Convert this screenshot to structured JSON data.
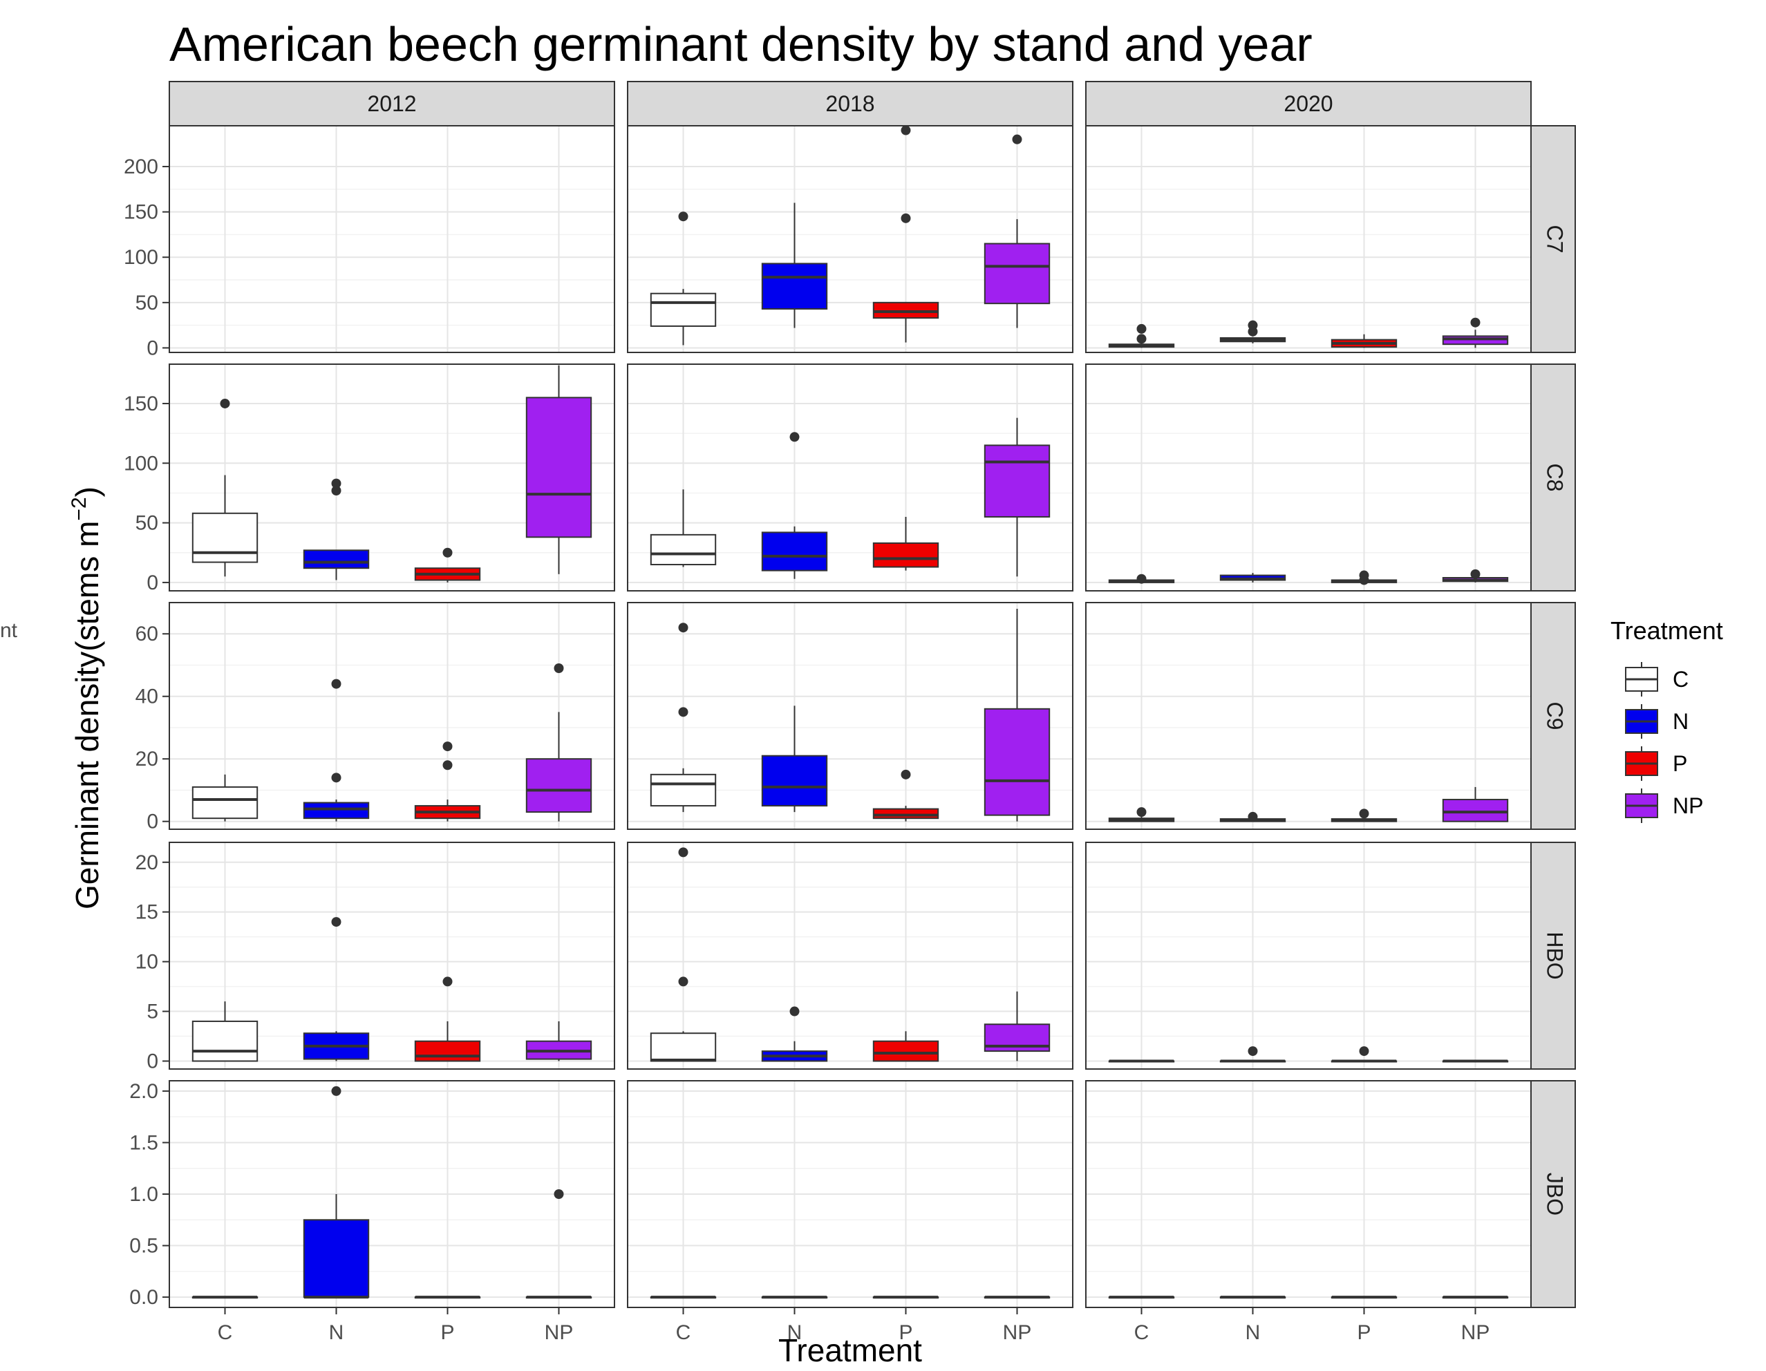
{
  "chart_data": {
    "type": "boxplot",
    "title": "American beech germinant density by stand and year",
    "xlabel": "Treatment",
    "ylabel": "Germinant density(stems m",
    "ylabel_superscript": "−2",
    "ylabel_close": ")",
    "stray_label": "nt",
    "categories": [
      "C",
      "N",
      "P",
      "NP"
    ],
    "columns": [
      "2012",
      "2018",
      "2020"
    ],
    "rows": [
      "C7",
      "C8",
      "C9",
      "HBO",
      "JBO"
    ],
    "legend": {
      "title": "Treatment",
      "placement": "right",
      "entries": [
        "C",
        "N",
        "P",
        "NP"
      ]
    },
    "colors": {
      "C": "#FFFFFF",
      "N": "#0000EE",
      "P": "#EE0000",
      "NP": "#A020F0"
    },
    "scales": {
      "C7": {
        "ylim": [
          -5,
          245
        ],
        "ticks": [
          0,
          50,
          100,
          150,
          200
        ],
        "tick_labels": [
          "0",
          "50",
          "100",
          "150",
          "200"
        ]
      },
      "C8": {
        "ylim": [
          -7,
          183
        ],
        "ticks": [
          0,
          50,
          100,
          150
        ],
        "tick_labels": [
          "0",
          "50",
          "100",
          "150"
        ]
      },
      "C9": {
        "ylim": [
          -2.5,
          70
        ],
        "ticks": [
          0,
          20,
          40,
          60
        ],
        "tick_labels": [
          "0",
          "20",
          "40",
          "60"
        ]
      },
      "HBO": {
        "ylim": [
          -0.8,
          22
        ],
        "ticks": [
          0,
          5,
          10,
          15,
          20
        ],
        "tick_labels": [
          "0",
          "5",
          "10",
          "15",
          "20"
        ]
      },
      "JBO": {
        "ylim": [
          -0.1,
          2.1
        ],
        "ticks": [
          0,
          0.5,
          1,
          1.5,
          2
        ],
        "tick_labels": [
          "0.0",
          "0.5",
          "1.0",
          "1.5",
          "2.0"
        ]
      }
    },
    "panels": [
      {
        "row": "C7",
        "col": "2012",
        "boxes": []
      },
      {
        "row": "C7",
        "col": "2018",
        "boxes": [
          {
            "group": "C",
            "q1": 24,
            "median": 50,
            "q3": 60,
            "low": 3,
            "high": 65,
            "outliers": [
              145
            ]
          },
          {
            "group": "N",
            "q1": 43,
            "median": 78,
            "q3": 93,
            "low": 22,
            "high": 160,
            "outliers": []
          },
          {
            "group": "P",
            "q1": 33,
            "median": 40,
            "q3": 50,
            "low": 6,
            "high": 50,
            "outliers": [
              143,
              240
            ]
          },
          {
            "group": "NP",
            "q1": 49,
            "median": 90,
            "q3": 115,
            "low": 22,
            "high": 142,
            "outliers": [
              230
            ]
          }
        ]
      },
      {
        "row": "C7",
        "col": "2020",
        "boxes": [
          {
            "group": "C",
            "q1": 1,
            "median": 2,
            "q3": 4,
            "low": 0,
            "high": 5,
            "outliers": [
              10,
              21
            ]
          },
          {
            "group": "N",
            "q1": 7,
            "median": 9,
            "q3": 11,
            "low": 5,
            "high": 12,
            "outliers": [
              18,
              25
            ]
          },
          {
            "group": "P",
            "q1": 1,
            "median": 5,
            "q3": 9,
            "low": 0,
            "high": 15,
            "outliers": []
          },
          {
            "group": "NP",
            "q1": 4,
            "median": 10,
            "q3": 13,
            "low": 0,
            "high": 20,
            "outliers": [
              28
            ]
          }
        ]
      },
      {
        "row": "C8",
        "col": "2012",
        "boxes": [
          {
            "group": "C",
            "q1": 17,
            "median": 25,
            "q3": 58,
            "low": 5,
            "high": 90,
            "outliers": [
              150
            ]
          },
          {
            "group": "N",
            "q1": 12,
            "median": 17,
            "q3": 27,
            "low": 2,
            "high": 27,
            "outliers": [
              77,
              83
            ]
          },
          {
            "group": "P",
            "q1": 2,
            "median": 7,
            "q3": 12,
            "low": 0,
            "high": 12,
            "outliers": [
              25
            ]
          },
          {
            "group": "NP",
            "q1": 38,
            "median": 74,
            "q3": 155,
            "low": 7,
            "high": 182,
            "outliers": []
          }
        ]
      },
      {
        "row": "C8",
        "col": "2018",
        "boxes": [
          {
            "group": "C",
            "q1": 15,
            "median": 24,
            "q3": 40,
            "low": 13,
            "high": 78,
            "outliers": []
          },
          {
            "group": "N",
            "q1": 10,
            "median": 22,
            "q3": 42,
            "low": 3,
            "high": 47,
            "outliers": [
              122
            ]
          },
          {
            "group": "P",
            "q1": 13,
            "median": 20,
            "q3": 33,
            "low": 10,
            "high": 55,
            "outliers": []
          },
          {
            "group": "NP",
            "q1": 55,
            "median": 101,
            "q3": 115,
            "low": 5,
            "high": 138,
            "outliers": []
          }
        ]
      },
      {
        "row": "C8",
        "col": "2020",
        "boxes": [
          {
            "group": "C",
            "q1": 0,
            "median": 1,
            "q3": 2,
            "low": 0,
            "high": 3,
            "outliers": [
              3
            ]
          },
          {
            "group": "N",
            "q1": 2,
            "median": 3,
            "q3": 6,
            "low": 0,
            "high": 8,
            "outliers": []
          },
          {
            "group": "P",
            "q1": 0,
            "median": 1,
            "q3": 2,
            "low": 0,
            "high": 3,
            "outliers": [
              2,
              6
            ]
          },
          {
            "group": "NP",
            "q1": 1,
            "median": 2,
            "q3": 4,
            "low": 0,
            "high": 5,
            "outliers": [
              7
            ]
          }
        ]
      },
      {
        "row": "C9",
        "col": "2012",
        "boxes": [
          {
            "group": "C",
            "q1": 1,
            "median": 7,
            "q3": 11,
            "low": 0,
            "high": 15,
            "outliers": []
          },
          {
            "group": "N",
            "q1": 1,
            "median": 4,
            "q3": 6,
            "low": 0,
            "high": 7,
            "outliers": [
              14,
              44
            ]
          },
          {
            "group": "P",
            "q1": 1,
            "median": 3,
            "q3": 5,
            "low": 0,
            "high": 7,
            "outliers": [
              18,
              24
            ]
          },
          {
            "group": "NP",
            "q1": 3,
            "median": 10,
            "q3": 20,
            "low": 0,
            "high": 35,
            "outliers": [
              49
            ]
          }
        ]
      },
      {
        "row": "C9",
        "col": "2018",
        "boxes": [
          {
            "group": "C",
            "q1": 5,
            "median": 12,
            "q3": 15,
            "low": 3,
            "high": 17,
            "outliers": [
              35,
              62
            ]
          },
          {
            "group": "N",
            "q1": 5,
            "median": 11,
            "q3": 21,
            "low": 3,
            "high": 37,
            "outliers": []
          },
          {
            "group": "P",
            "q1": 1,
            "median": 2,
            "q3": 4,
            "low": 0,
            "high": 5,
            "outliers": [
              15
            ]
          },
          {
            "group": "NP",
            "q1": 2,
            "median": 13,
            "q3": 36,
            "low": 0,
            "high": 68,
            "outliers": []
          }
        ]
      },
      {
        "row": "C9",
        "col": "2020",
        "boxes": [
          {
            "group": "C",
            "q1": 0,
            "median": 0.5,
            "q3": 1,
            "low": 0,
            "high": 2,
            "outliers": [
              3
            ]
          },
          {
            "group": "N",
            "q1": 0,
            "median": 0.3,
            "q3": 0.8,
            "low": 0,
            "high": 1,
            "outliers": [
              1.5
            ]
          },
          {
            "group": "P",
            "q1": 0,
            "median": 0.3,
            "q3": 0.8,
            "low": 0,
            "high": 1,
            "outliers": [
              2.5
            ]
          },
          {
            "group": "NP",
            "q1": 0,
            "median": 3,
            "q3": 7,
            "low": 0,
            "high": 11,
            "outliers": []
          }
        ]
      },
      {
        "row": "HBO",
        "col": "2012",
        "boxes": [
          {
            "group": "C",
            "q1": 0,
            "median": 1,
            "q3": 4,
            "low": 0,
            "high": 6,
            "outliers": []
          },
          {
            "group": "N",
            "q1": 0.2,
            "median": 1.5,
            "q3": 2.8,
            "low": 0,
            "high": 3,
            "outliers": [
              14
            ]
          },
          {
            "group": "P",
            "q1": 0,
            "median": 0.5,
            "q3": 2,
            "low": 0,
            "high": 4,
            "outliers": [
              8
            ]
          },
          {
            "group": "NP",
            "q1": 0.2,
            "median": 1,
            "q3": 2,
            "low": 0,
            "high": 4,
            "outliers": []
          }
        ]
      },
      {
        "row": "HBO",
        "col": "2018",
        "boxes": [
          {
            "group": "C",
            "q1": 0,
            "median": 0.1,
            "q3": 2.8,
            "low": 0,
            "high": 3,
            "outliers": [
              8,
              21
            ]
          },
          {
            "group": "N",
            "q1": 0,
            "median": 0.5,
            "q3": 1,
            "low": 0,
            "high": 2,
            "outliers": [
              5
            ]
          },
          {
            "group": "P",
            "q1": 0,
            "median": 0.8,
            "q3": 2,
            "low": 0,
            "high": 3,
            "outliers": []
          },
          {
            "group": "NP",
            "q1": 1,
            "median": 1.5,
            "q3": 3.7,
            "low": 0,
            "high": 7,
            "outliers": []
          }
        ]
      },
      {
        "row": "HBO",
        "col": "2020",
        "boxes": [
          {
            "group": "C",
            "q1": 0,
            "median": 0,
            "q3": 0,
            "low": 0,
            "high": 0,
            "outliers": []
          },
          {
            "group": "N",
            "q1": 0,
            "median": 0,
            "q3": 0,
            "low": 0,
            "high": 0,
            "outliers": [
              1
            ]
          },
          {
            "group": "P",
            "q1": 0,
            "median": 0,
            "q3": 0,
            "low": 0,
            "high": 0,
            "outliers": [
              1
            ]
          },
          {
            "group": "NP",
            "q1": 0,
            "median": 0,
            "q3": 0,
            "low": 0,
            "high": 0,
            "outliers": []
          }
        ]
      },
      {
        "row": "JBO",
        "col": "2012",
        "boxes": [
          {
            "group": "C",
            "q1": 0,
            "median": 0,
            "q3": 0,
            "low": 0,
            "high": 0,
            "outliers": []
          },
          {
            "group": "N",
            "q1": 0,
            "median": 0,
            "q3": 0.75,
            "low": 0,
            "high": 1,
            "outliers": [
              2
            ]
          },
          {
            "group": "P",
            "q1": 0,
            "median": 0,
            "q3": 0,
            "low": 0,
            "high": 0,
            "outliers": []
          },
          {
            "group": "NP",
            "q1": 0,
            "median": 0,
            "q3": 0,
            "low": 0,
            "high": 0,
            "outliers": [
              1
            ]
          }
        ]
      },
      {
        "row": "JBO",
        "col": "2018",
        "boxes": [
          {
            "group": "C",
            "q1": 0,
            "median": 0,
            "q3": 0,
            "low": 0,
            "high": 0,
            "outliers": []
          },
          {
            "group": "N",
            "q1": 0,
            "median": 0,
            "q3": 0,
            "low": 0,
            "high": 0,
            "outliers": []
          },
          {
            "group": "P",
            "q1": 0,
            "median": 0,
            "q3": 0,
            "low": 0,
            "high": 0,
            "outliers": []
          },
          {
            "group": "NP",
            "q1": 0,
            "median": 0,
            "q3": 0,
            "low": 0,
            "high": 0,
            "outliers": []
          }
        ]
      },
      {
        "row": "JBO",
        "col": "2020",
        "boxes": [
          {
            "group": "C",
            "q1": 0,
            "median": 0,
            "q3": 0,
            "low": 0,
            "high": 0,
            "outliers": []
          },
          {
            "group": "N",
            "q1": 0,
            "median": 0,
            "q3": 0,
            "low": 0,
            "high": 0,
            "outliers": []
          },
          {
            "group": "P",
            "q1": 0,
            "median": 0,
            "q3": 0,
            "low": 0,
            "high": 0,
            "outliers": []
          },
          {
            "group": "NP",
            "q1": 0,
            "median": 0,
            "q3": 0,
            "low": 0,
            "high": 0,
            "outliers": []
          }
        ]
      }
    ]
  }
}
